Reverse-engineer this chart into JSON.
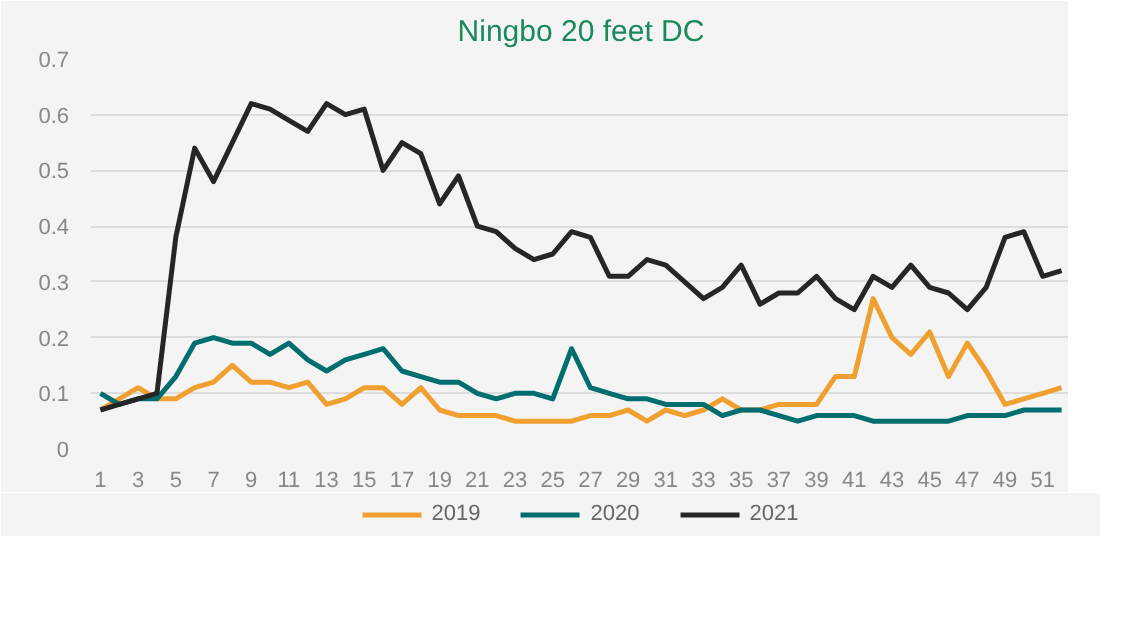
{
  "chart_data": {
    "type": "line",
    "title": "Ningbo 20 feet DC",
    "x": [
      1,
      2,
      3,
      4,
      5,
      6,
      7,
      8,
      9,
      10,
      11,
      12,
      13,
      14,
      15,
      16,
      17,
      18,
      19,
      20,
      21,
      22,
      23,
      24,
      25,
      26,
      27,
      28,
      29,
      30,
      31,
      32,
      33,
      34,
      35,
      36,
      37,
      38,
      39,
      40,
      41,
      42,
      43,
      44,
      45,
      46,
      47,
      48,
      49,
      50,
      51,
      52
    ],
    "series": [
      {
        "name": "2019",
        "color": "#f0a030",
        "values": [
          0.07,
          0.09,
          0.11,
          0.09,
          0.09,
          0.11,
          0.12,
          0.15,
          0.12,
          0.12,
          0.11,
          0.12,
          0.08,
          0.09,
          0.11,
          0.11,
          0.08,
          0.11,
          0.07,
          0.06,
          0.06,
          0.06,
          0.05,
          0.05,
          0.05,
          0.05,
          0.06,
          0.06,
          0.07,
          0.05,
          0.07,
          0.06,
          0.07,
          0.09,
          0.07,
          0.07,
          0.08,
          0.08,
          0.08,
          0.13,
          0.13,
          0.27,
          0.2,
          0.17,
          0.21,
          0.13,
          0.19,
          0.14,
          0.08,
          0.09,
          0.1,
          0.11
        ]
      },
      {
        "name": "2020",
        "color": "#006d6f",
        "values": [
          0.1,
          0.08,
          0.09,
          0.09,
          0.13,
          0.19,
          0.2,
          0.19,
          0.19,
          0.17,
          0.19,
          0.16,
          0.14,
          0.16,
          0.17,
          0.18,
          0.14,
          0.13,
          0.12,
          0.12,
          0.1,
          0.09,
          0.1,
          0.1,
          0.09,
          0.18,
          0.11,
          0.1,
          0.09,
          0.09,
          0.08,
          0.08,
          0.08,
          0.06,
          0.07,
          0.07,
          0.06,
          0.05,
          0.06,
          0.06,
          0.06,
          0.05,
          0.05,
          0.05,
          0.05,
          0.05,
          0.06,
          0.06,
          0.06,
          0.07,
          0.07,
          0.07
        ]
      },
      {
        "name": "2021",
        "color": "#262626",
        "values": [
          0.07,
          0.08,
          0.09,
          0.1,
          0.38,
          0.54,
          0.48,
          0.55,
          0.62,
          0.61,
          0.59,
          0.57,
          0.62,
          0.6,
          0.61,
          0.5,
          0.55,
          0.53,
          0.44,
          0.49,
          0.4,
          0.39,
          0.36,
          0.34,
          0.35,
          0.39,
          0.38,
          0.31,
          0.31,
          0.34,
          0.33,
          0.3,
          0.27,
          0.29,
          0.33,
          0.26,
          0.28,
          0.28,
          0.31,
          0.27,
          0.25,
          0.31,
          0.29,
          0.33,
          0.29,
          0.28,
          0.25,
          0.29,
          0.38,
          0.39,
          0.31,
          0.32
        ]
      }
    ],
    "xlim": [
      0.5,
      52.5
    ],
    "xticks": [
      1,
      3,
      5,
      7,
      9,
      11,
      13,
      15,
      17,
      19,
      21,
      23,
      25,
      27,
      29,
      31,
      33,
      35,
      37,
      39,
      41,
      43,
      45,
      47,
      49,
      51
    ],
    "ylim": [
      0,
      0.7
    ],
    "yticks": [
      0,
      0.1,
      0.2,
      0.3,
      0.4,
      0.5,
      0.6,
      0.7
    ],
    "grid": "y",
    "legend": "bottom",
    "marker": "none",
    "line_style": "solid"
  }
}
